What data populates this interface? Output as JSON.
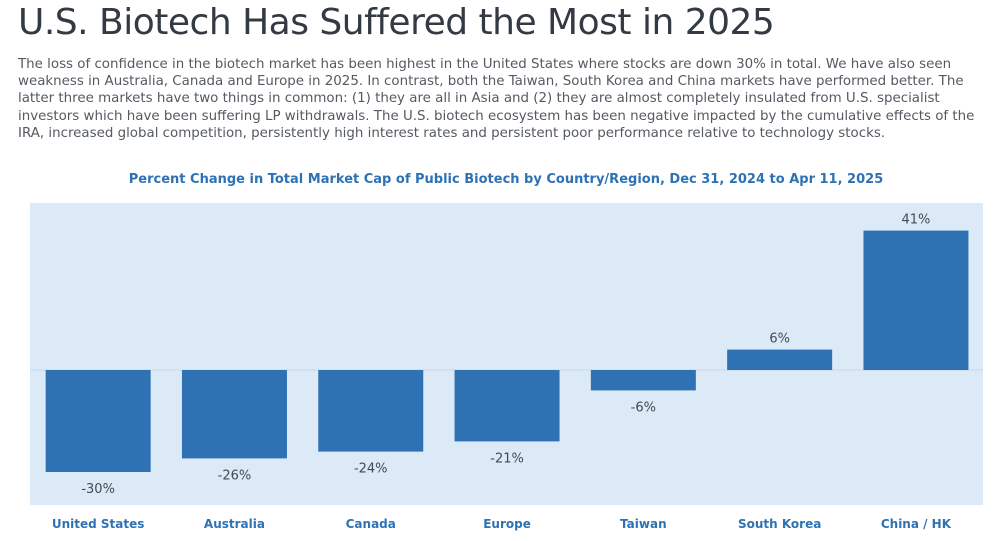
{
  "header": {
    "title": "U.S. Biotech Has Suffered the Most in 2025",
    "body": "The loss of confidence in the biotech market has been highest in the United States where stocks are down 30% in total. We have also seen weakness in Australia, Canada and Europe in 2025. In contrast, both the Taiwan, South Korea and China markets have performed better. The latter three markets have two things in common: (1) they are all in Asia and (2) they are almost completely insulated from U.S. specialist investors which have been suffering LP withdrawals. The U.S. biotech ecosystem has been negative impacted by the cumulative effects of the IRA, increased global competition, persistently high interest rates and persistent poor performance relative to technology stocks."
  },
  "chart_data": {
    "type": "bar",
    "title": "Percent Change in Total Market Cap of Public Biotech by Country/Region, Dec 31, 2024 to Apr 11, 2025",
    "categories": [
      "United States",
      "Australia",
      "Canada",
      "Europe",
      "Taiwan",
      "South Korea",
      "China / HK"
    ],
    "values": [
      -30,
      -26,
      -24,
      -21,
      -6,
      6,
      41
    ],
    "data_labels": [
      "-30%",
      "-26%",
      "-24%",
      "-21%",
      "-6%",
      "6%",
      "41%"
    ],
    "xlabel": "",
    "ylabel": "",
    "unit": "%",
    "ylim": [
      -40,
      49
    ],
    "grid": false,
    "legend": "none",
    "colors": {
      "bar": "#2e72b4",
      "plot_background": "#dce9f6",
      "zero_line": "#c8d8ea",
      "category_label": "#2e72b4"
    }
  }
}
